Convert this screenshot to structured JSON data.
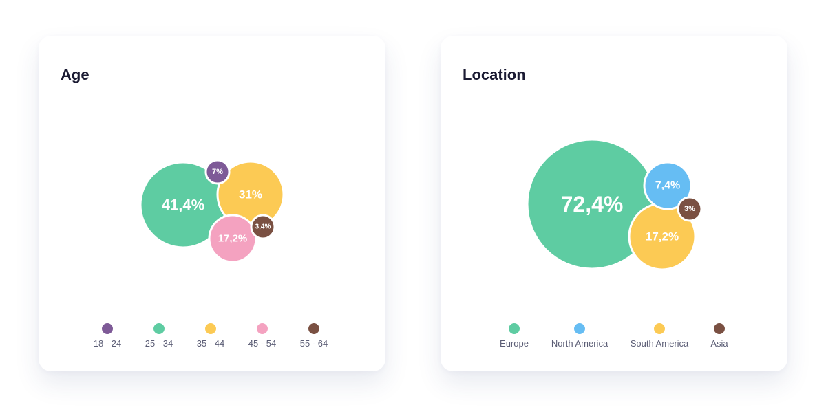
{
  "chart_data": [
    {
      "type": "bubble",
      "title": "Age",
      "slices": [
        {
          "label": "18 - 24",
          "value": 7,
          "display": "7%",
          "color": "#7e5a97"
        },
        {
          "label": "25 - 34",
          "value": 41.4,
          "display": "41,4%",
          "color": "#5ecca2"
        },
        {
          "label": "35 - 44",
          "value": 31,
          "display": "31%",
          "color": "#fcca54"
        },
        {
          "label": "45 - 54",
          "value": 17.2,
          "display": "17,2%",
          "color": "#f4a2c0"
        },
        {
          "label": "55 - 64",
          "value": 3.4,
          "display": "3,4%",
          "color": "#7a5042"
        }
      ],
      "legend": "bottom"
    },
    {
      "type": "bubble",
      "title": "Location",
      "slices": [
        {
          "label": "Europe",
          "value": 72.4,
          "display": "72,4%",
          "color": "#5ecca2"
        },
        {
          "label": "North America",
          "value": 7.4,
          "display": "7,4%",
          "color": "#66bdf3"
        },
        {
          "label": "South America",
          "value": 17.2,
          "display": "17,2%",
          "color": "#fcca54"
        },
        {
          "label": "Asia",
          "value": 3,
          "display": "3%",
          "color": "#7a5042"
        }
      ],
      "legend": "bottom"
    }
  ]
}
